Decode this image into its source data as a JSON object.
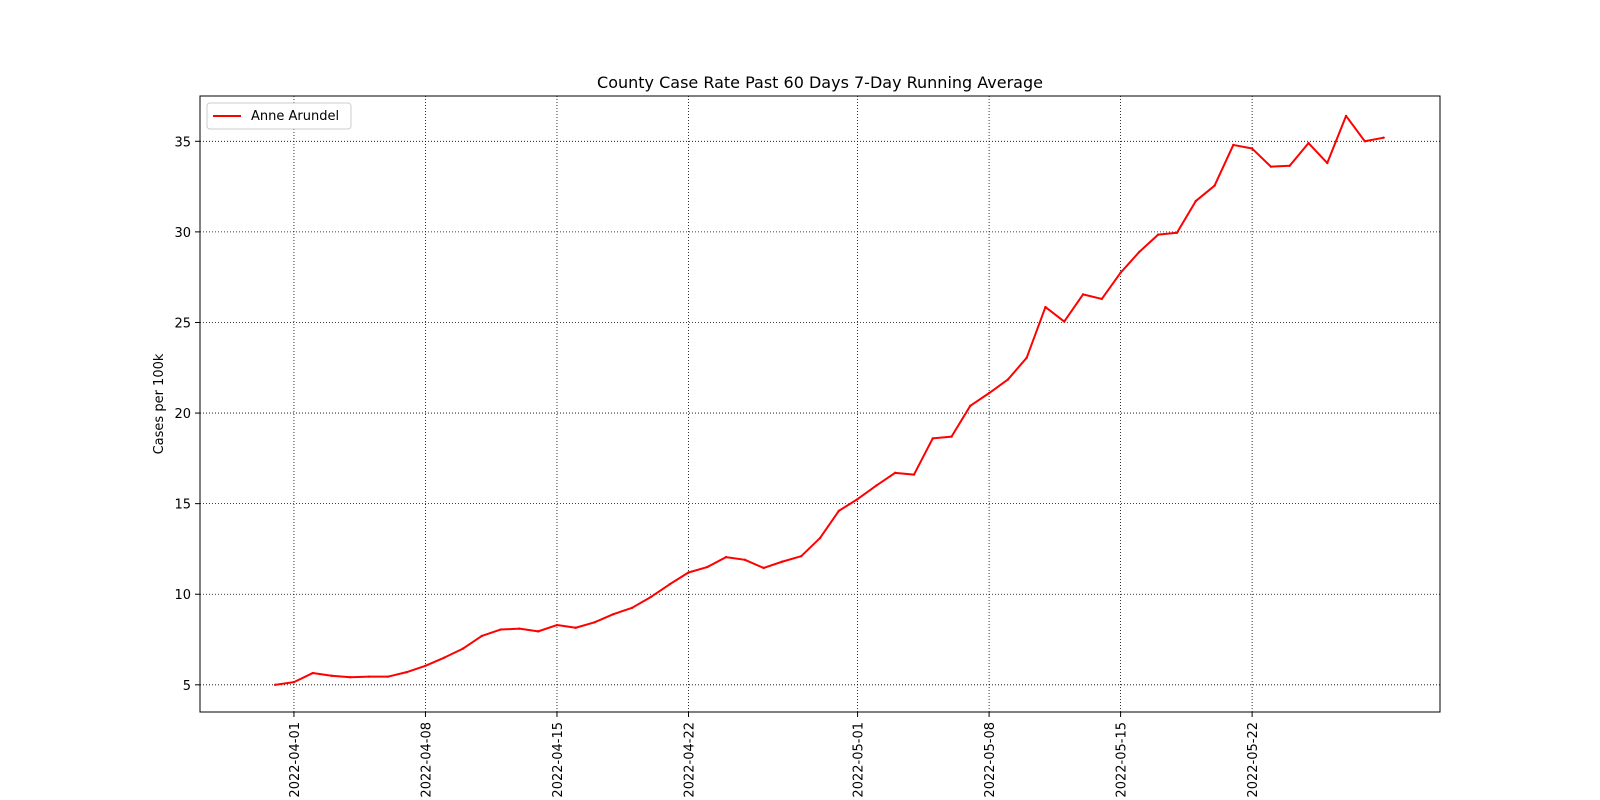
{
  "chart_data": {
    "type": "line",
    "title": "County Case Rate  Past 60 Days 7-Day Running Average",
    "xlabel": "",
    "ylabel": "Cases per 100k",
    "x_range": [
      "2022-03-27",
      "2022-06-01"
    ],
    "ylim": [
      3.5,
      37.5
    ],
    "grid": true,
    "grid_style": "dotted",
    "legend_position": "upper-left",
    "y_ticks": [
      5,
      10,
      15,
      20,
      25,
      30,
      35
    ],
    "x_ticks": [
      "2022-04-01",
      "2022-04-08",
      "2022-04-15",
      "2022-04-22",
      "2022-05-01",
      "2022-05-08",
      "2022-05-15",
      "2022-05-22"
    ],
    "series": [
      {
        "name": "Anne Arundel",
        "color": "#ff0000",
        "points": [
          [
            "2022-03-31",
            5.0
          ],
          [
            "2022-04-01",
            5.15
          ],
          [
            "2022-04-02",
            5.65
          ],
          [
            "2022-04-03",
            5.5
          ],
          [
            "2022-04-04",
            5.42
          ],
          [
            "2022-04-05",
            5.45
          ],
          [
            "2022-04-06",
            5.45
          ],
          [
            "2022-04-07",
            5.7
          ],
          [
            "2022-04-08",
            6.05
          ],
          [
            "2022-04-09",
            6.5
          ],
          [
            "2022-04-10",
            7.0
          ],
          [
            "2022-04-11",
            7.7
          ],
          [
            "2022-04-12",
            8.05
          ],
          [
            "2022-04-13",
            8.1
          ],
          [
            "2022-04-14",
            7.95
          ],
          [
            "2022-04-15",
            8.3
          ],
          [
            "2022-04-16",
            8.15
          ],
          [
            "2022-04-17",
            8.45
          ],
          [
            "2022-04-18",
            8.9
          ],
          [
            "2022-04-19",
            9.25
          ],
          [
            "2022-04-20",
            9.85
          ],
          [
            "2022-04-21",
            10.55
          ],
          [
            "2022-04-22",
            11.2
          ],
          [
            "2022-04-23",
            11.5
          ],
          [
            "2022-04-24",
            12.05
          ],
          [
            "2022-04-25",
            11.9
          ],
          [
            "2022-04-26",
            11.45
          ],
          [
            "2022-04-27",
            11.8
          ],
          [
            "2022-04-28",
            12.1
          ],
          [
            "2022-04-29",
            13.1
          ],
          [
            "2022-04-30",
            14.6
          ],
          [
            "2022-05-01",
            15.25
          ],
          [
            "2022-05-02",
            16.0
          ],
          [
            "2022-05-03",
            16.7
          ],
          [
            "2022-05-04",
            16.6
          ],
          [
            "2022-05-05",
            18.6
          ],
          [
            "2022-05-06",
            18.7
          ],
          [
            "2022-05-07",
            20.4
          ],
          [
            "2022-05-08",
            21.1
          ],
          [
            "2022-05-09",
            21.85
          ],
          [
            "2022-05-10",
            23.05
          ],
          [
            "2022-05-11",
            25.85
          ],
          [
            "2022-05-12",
            25.05
          ],
          [
            "2022-05-13",
            26.55
          ],
          [
            "2022-05-14",
            26.3
          ],
          [
            "2022-05-15",
            27.75
          ],
          [
            "2022-05-16",
            28.9
          ],
          [
            "2022-05-17",
            29.85
          ],
          [
            "2022-05-18",
            29.95
          ],
          [
            "2022-05-19",
            31.7
          ],
          [
            "2022-05-20",
            32.55
          ],
          [
            "2022-05-21",
            34.8
          ],
          [
            "2022-05-22",
            34.6
          ],
          [
            "2022-05-23",
            33.6
          ],
          [
            "2022-05-24",
            33.65
          ],
          [
            "2022-05-25",
            34.9
          ],
          [
            "2022-05-26",
            33.8
          ],
          [
            "2022-05-27",
            36.4
          ],
          [
            "2022-05-28",
            35.0
          ],
          [
            "2022-05-29",
            35.2
          ]
        ]
      }
    ]
  }
}
